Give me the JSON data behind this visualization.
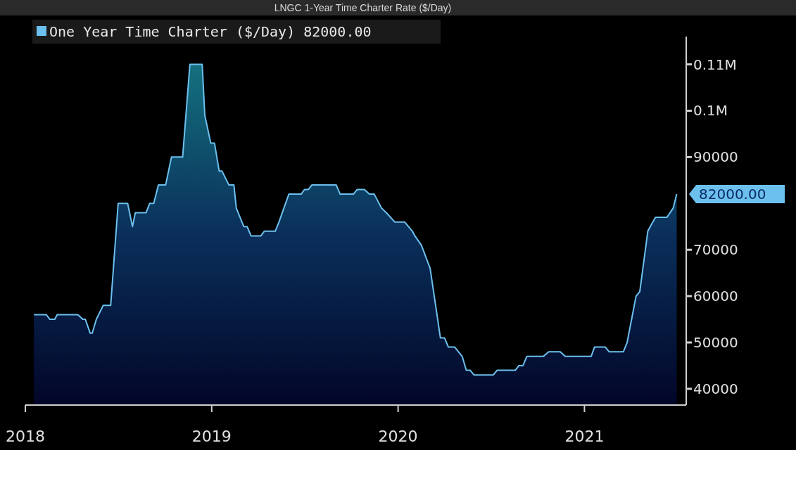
{
  "chart_data": {
    "type": "area",
    "title": "LNGC 1-Year Time Charter Rate ($/Day)",
    "x": [
      2018.046,
      2018.112,
      2018.132,
      2018.158,
      2018.171,
      2018.282,
      2018.308,
      2018.322,
      2018.348,
      2018.359,
      2018.381,
      2018.418,
      2018.458,
      2018.498,
      2018.549,
      2018.575,
      2018.59,
      2018.648,
      2018.667,
      2018.689,
      2018.714,
      2018.753,
      2018.784,
      2018.844,
      2018.883,
      2018.949,
      2018.963,
      2018.995,
      2019.015,
      2019.04,
      2019.055,
      2019.092,
      2019.119,
      2019.132,
      2019.172,
      2019.19,
      2019.211,
      2019.264,
      2019.282,
      2019.341,
      2019.361,
      2019.414,
      2019.48,
      2019.498,
      2019.518,
      2019.538,
      2019.668,
      2019.689,
      2019.76,
      2019.78,
      2019.819,
      2019.846,
      2019.872,
      2019.911,
      2019.937,
      2019.982,
      2020.035,
      2020.077,
      2020.09,
      2020.125,
      2020.172,
      2020.227,
      2020.249,
      2020.27,
      2020.304,
      2020.344,
      2020.366,
      2020.387,
      2020.407,
      2020.511,
      2020.531,
      2020.629,
      2020.648,
      2020.67,
      2020.691,
      2020.78,
      2020.808,
      2020.87,
      2020.897,
      2021.036,
      2021.054,
      2021.112,
      2021.132,
      2021.209,
      2021.229,
      2021.277,
      2021.297,
      2021.34,
      2021.353,
      2021.381,
      2021.443,
      2021.476,
      2021.495
    ],
    "series": [
      {
        "name": "One Year Time Charter ($/Day)",
        "color": "#6cc0ee",
        "values": [
          56000,
          56000,
          55000,
          55000,
          56000,
          56000,
          55000,
          55000,
          52000,
          52000,
          55000,
          58000,
          58000,
          80000,
          80000,
          75000,
          78000,
          78000,
          80000,
          80000,
          84000,
          84000,
          90000,
          90000,
          110000,
          110000,
          99000,
          93000,
          93000,
          87000,
          87000,
          84000,
          84000,
          79000,
          75000,
          75000,
          73000,
          73000,
          74000,
          74000,
          76000,
          82000,
          82000,
          83000,
          83000,
          84000,
          84000,
          82000,
          82000,
          83000,
          83000,
          82000,
          82000,
          79000,
          78000,
          76000,
          76000,
          74000,
          73000,
          71000,
          66000,
          51000,
          51000,
          49000,
          49000,
          47000,
          44000,
          44000,
          43000,
          43000,
          44000,
          44000,
          45000,
          45000,
          47000,
          47000,
          48000,
          48000,
          47000,
          47000,
          49000,
          49000,
          48000,
          48000,
          50000,
          60000,
          61000,
          74000,
          75000,
          77000,
          77000,
          79000,
          82000
        ],
        "value_labels": [
          null,
          null,
          null,
          null,
          null,
          null,
          null,
          null,
          null,
          null,
          null,
          null,
          null,
          null,
          null,
          null,
          null,
          null,
          null,
          null,
          null,
          null,
          null,
          null,
          null,
          null,
          null,
          null,
          null,
          null,
          null,
          null,
          null,
          null,
          null,
          null,
          null,
          null,
          null,
          null,
          null,
          null,
          null,
          null,
          null,
          null,
          null,
          null,
          null,
          null,
          null,
          null,
          null,
          null,
          null,
          null,
          null,
          null,
          null,
          null,
          null,
          null,
          null,
          null,
          null,
          null,
          null,
          null,
          null,
          null,
          null,
          null,
          null,
          null,
          null,
          null,
          null,
          null,
          null,
          null,
          null,
          null,
          null,
          null,
          null,
          null,
          null,
          null,
          null,
          null,
          null,
          null,
          "82000.00"
        ]
      }
    ],
    "xlim": [
      2018,
      2021.546
    ],
    "xticks": [
      2018,
      2019,
      2020,
      2021
    ],
    "ylim": [
      36500,
      116000
    ],
    "yticks": [
      40000,
      50000,
      60000,
      70000,
      90000,
      {
        "value": 100000,
        "label": "0.1M"
      },
      {
        "value": 110000,
        "label": "0.11M"
      }
    ],
    "grid": false,
    "legend": "top left"
  }
}
